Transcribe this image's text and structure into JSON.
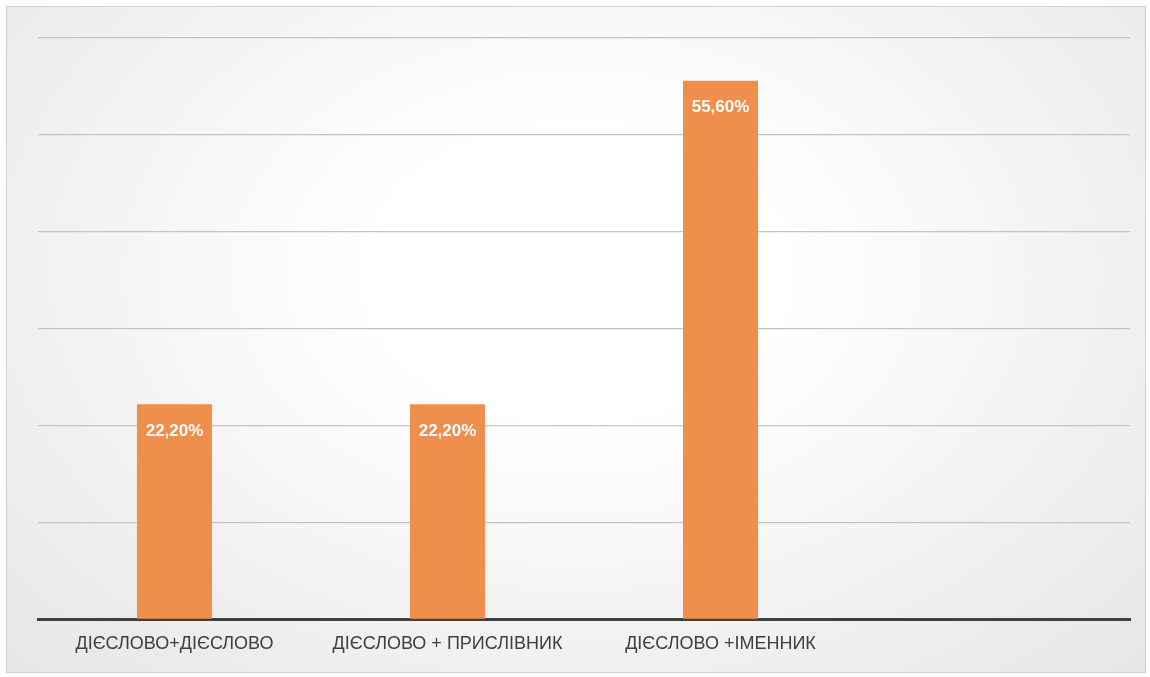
{
  "chart_data": {
    "type": "bar",
    "categories": [
      "ДІЄСЛОВО+ДІЄСЛОВО",
      "ДІЄСЛОВО + ПРИСЛІВНИК",
      "ДІЄСЛОВО +ІМЕННИК",
      null
    ],
    "values": [
      22.2,
      22.2,
      55.6,
      null
    ],
    "value_labels": [
      "22,20%",
      "22,20%",
      "55,60%",
      null
    ],
    "color": "#ee8f4d",
    "ylim": [
      0,
      60
    ],
    "yticks": [
      {
        "value": 0,
        "label": null
      },
      {
        "value": 10,
        "label": null
      },
      {
        "value": 20,
        "label": null
      },
      {
        "value": 30,
        "label": null
      },
      {
        "value": 40,
        "label": null
      },
      {
        "value": 50,
        "label": null
      },
      {
        "value": 60,
        "label": null
      }
    ],
    "tick_labels": "x",
    "grid": "y",
    "legend": false
  }
}
